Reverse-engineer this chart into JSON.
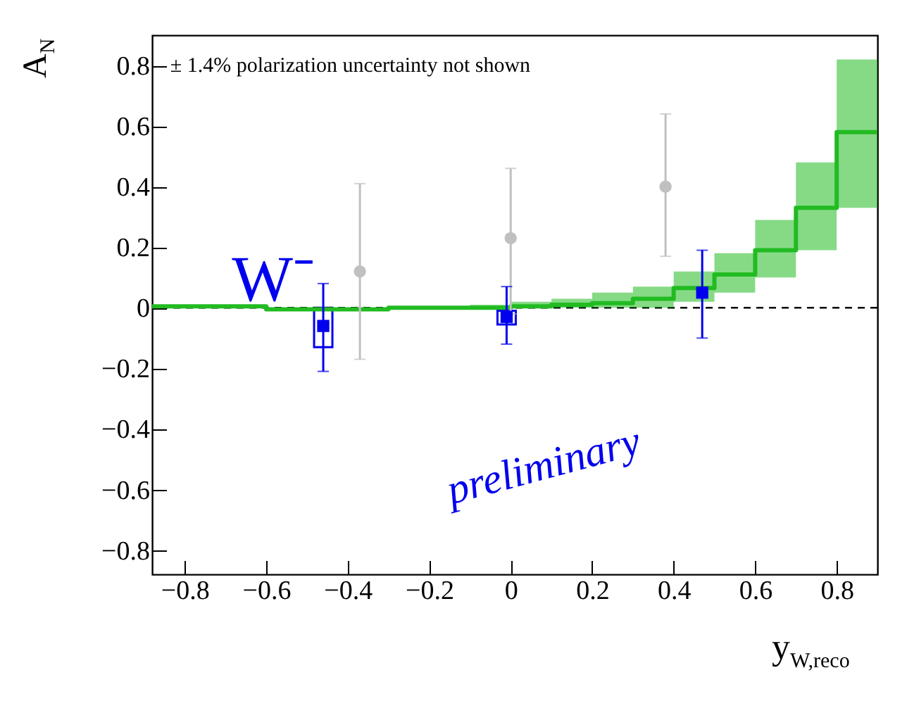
{
  "chart_data": {
    "type": "scatter",
    "xlabel": "y$_{W,reco}$",
    "ylabel": "A$_{N}$",
    "annotations": [
      "± 1.4% polarization uncertainty not shown",
      "W⁻",
      "preliminary"
    ],
    "xlim": [
      -0.88,
      0.9
    ],
    "ylim": [
      -0.88,
      0.9
    ],
    "xticks": [
      {
        "value": -0.8,
        "label": "−0.8"
      },
      {
        "value": -0.6,
        "label": "−0.6"
      },
      {
        "value": -0.4,
        "label": "−0.4"
      },
      {
        "value": -0.2,
        "label": "−0.2"
      },
      0,
      0.2,
      0.4,
      0.6,
      0.8
    ],
    "yticks": [
      {
        "value": -0.8,
        "label": "−0.8"
      },
      {
        "value": -0.6,
        "label": "−0.6"
      },
      {
        "value": -0.4,
        "label": "−0.4"
      },
      {
        "value": -0.2,
        "label": "−0.2"
      },
      0,
      0.2,
      0.4,
      0.6,
      0.8
    ],
    "ref_lines": [
      {
        "axis": "y",
        "value": 0,
        "color": "#000000",
        "line_style": "dashed"
      }
    ],
    "series": [
      {
        "type": "step",
        "color": "#22bb22",
        "x": [
          -0.88,
          -0.6,
          -0.5,
          -0.4,
          -0.3,
          -0.2,
          -0.1,
          0,
          0.1,
          0.2,
          0.3,
          0.4,
          0.5,
          0.6,
          0.7,
          0.8,
          0.9
        ],
        "values": [
          0.005,
          -0.005,
          -0.005,
          -0.005,
          0,
          0,
          0,
          0.005,
          0.01,
          0.015,
          0.03,
          0.065,
          0.11,
          0.19,
          0.33,
          0.58,
          0.58
        ],
        "lower": [
          0.005,
          -0.01,
          -0.01,
          -0.01,
          -0.005,
          -0.005,
          -0.005,
          0,
          0,
          0,
          0,
          0.02,
          0.05,
          0.1,
          0.19,
          0.33,
          0.33
        ],
        "upper": [
          0.005,
          0,
          0,
          0,
          0.005,
          0.005,
          0.01,
          0.02,
          0.03,
          0.05,
          0.07,
          0.12,
          0.18,
          0.29,
          0.48,
          0.82,
          0.82
        ]
      },
      {
        "color": "#c0c0c0",
        "marker": "circle",
        "x": [
          -0.37,
          0.0,
          0.38
        ],
        "values": [
          0.12,
          0.23,
          0.4
        ],
        "errors": [
          [
            -0.17,
            0.41
          ],
          [
            -0.02,
            0.46
          ],
          [
            0.17,
            0.64
          ]
        ]
      },
      {
        "type": "bar",
        "color": "#0000ee",
        "x": [
          -0.46,
          -0.01
        ],
        "base": [
          -0.13,
          -0.055
        ],
        "values": [
          0.13,
          0.045
        ]
      },
      {
        "color": "#0000ee",
        "marker": "square",
        "x": [
          -0.46,
          -0.01,
          0.47
        ],
        "values": [
          -0.06,
          -0.03,
          0.05
        ],
        "errors": [
          [
            -0.21,
            0.08
          ],
          [
            -0.12,
            0.07
          ],
          [
            -0.1,
            0.19
          ]
        ]
      }
    ]
  }
}
